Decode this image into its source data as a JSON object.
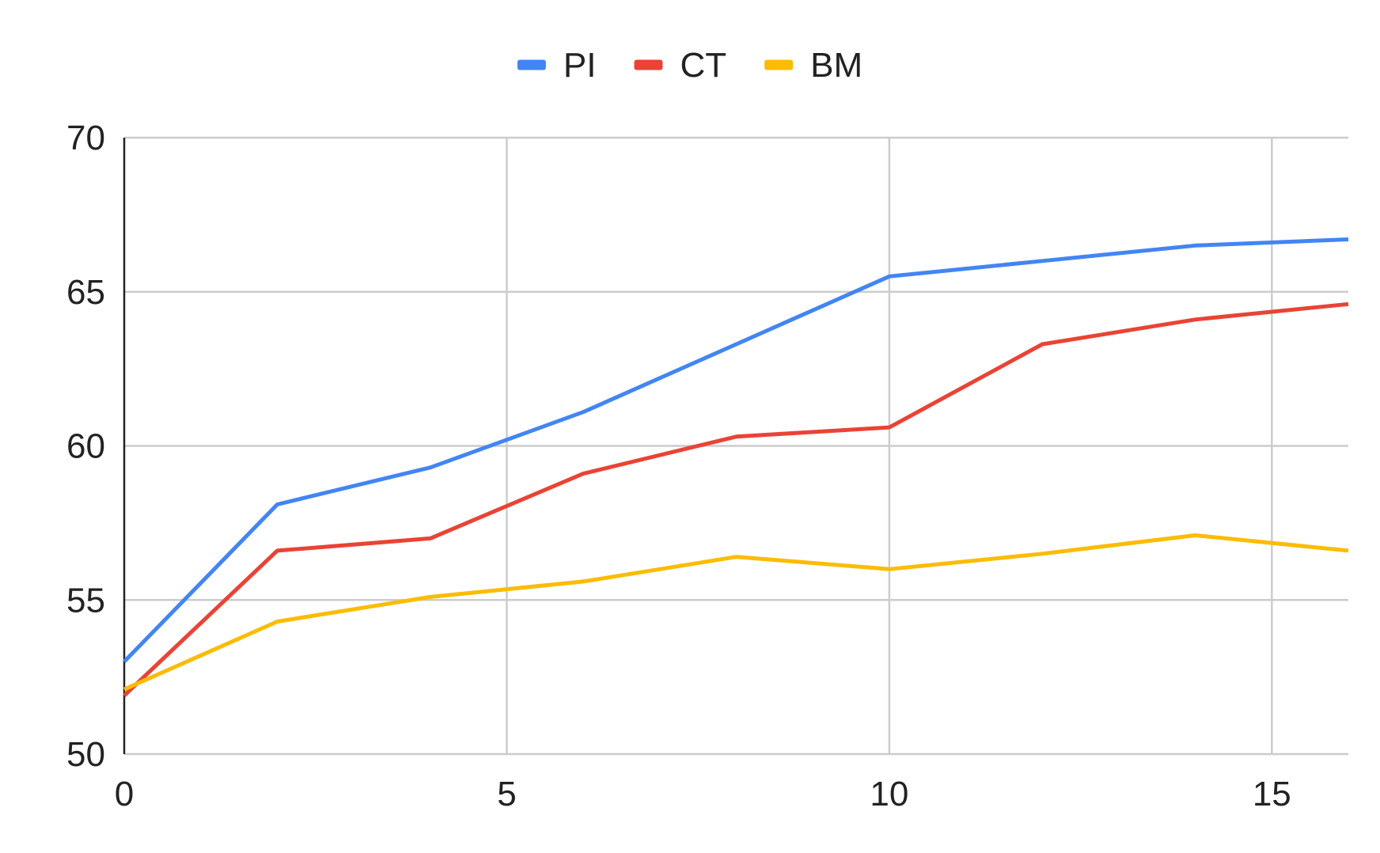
{
  "chart_data": {
    "type": "line",
    "title": "",
    "xlabel": "",
    "ylabel": "",
    "xlim": [
      0,
      16
    ],
    "ylim": [
      50,
      70
    ],
    "x_ticks": [
      0,
      5,
      10,
      15
    ],
    "y_ticks": [
      50,
      55,
      60,
      65,
      70
    ],
    "grid": true,
    "legend_position": "top-center",
    "x": [
      0,
      2,
      4,
      6,
      8,
      10,
      12,
      14,
      16
    ],
    "series": [
      {
        "name": "PI",
        "color": "#4285F4",
        "values": [
          53.0,
          58.1,
          59.3,
          61.1,
          63.3,
          65.5,
          66.0,
          66.5,
          66.7
        ]
      },
      {
        "name": "CT",
        "color": "#EA4335",
        "values": [
          51.9,
          56.6,
          57.0,
          59.1,
          60.3,
          60.6,
          63.3,
          64.1,
          64.6
        ]
      },
      {
        "name": "BM",
        "color": "#FBBC04",
        "values": [
          52.1,
          54.3,
          55.1,
          55.6,
          56.4,
          56.0,
          56.5,
          57.1,
          56.6
        ]
      }
    ]
  }
}
